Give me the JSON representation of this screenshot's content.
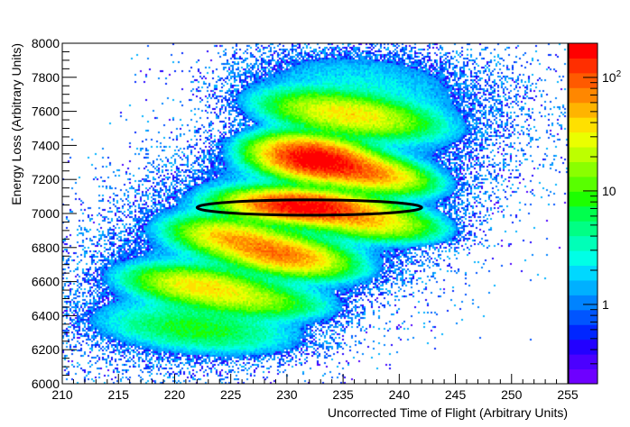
{
  "chart_data": {
    "type": "heatmap",
    "title": "",
    "xlabel": "Uncorrected Time of Flight (Arbitrary Units)",
    "ylabel": "Energy Loss (Arbitrary Units)",
    "xlim": [
      210,
      255
    ],
    "ylim": [
      6000,
      8000
    ],
    "x_ticks": [
      "210",
      "215",
      "220",
      "225",
      "230",
      "235",
      "240",
      "245",
      "250",
      "255"
    ],
    "y_ticks": [
      "6000",
      "6200",
      "6400",
      "6600",
      "6800",
      "7000",
      "7200",
      "7400",
      "7600",
      "7800",
      "8000"
    ],
    "colorbar": {
      "scale": "log",
      "range": [
        0.2,
        200
      ],
      "tick_labels": [
        {
          "value": 1,
          "text": "1"
        },
        {
          "value": 10,
          "text": "10"
        },
        {
          "value": 100,
          "text": "10",
          "sup": "2"
        }
      ],
      "palette": [
        "#6e00ff",
        "#4b00ff",
        "#2300ff",
        "#0026ff",
        "#0055ff",
        "#0083ff",
        "#00b0ff",
        "#00d8ff",
        "#00ffe6",
        "#00ffb8",
        "#00ff84",
        "#00ff4d",
        "#1dff00",
        "#58ff00",
        "#8aff00",
        "#bdff00",
        "#eaff00",
        "#ffe000",
        "#ffb400",
        "#ff8700",
        "#ff5a00",
        "#ff2e00",
        "#ff0000"
      ]
    },
    "clusters": [
      {
        "x": 235.5,
        "y": 7580,
        "sx": 3.6,
        "sy": 65,
        "rho": -0.45,
        "peak": 35
      },
      {
        "x": 232.5,
        "y": 7320,
        "sx": 2.4,
        "sy": 60,
        "rho": -0.3,
        "peak": 200
      },
      {
        "x": 237.0,
        "y": 7240,
        "sx": 2.6,
        "sy": 55,
        "rho": -0.45,
        "peak": 70
      },
      {
        "x": 231.5,
        "y": 7040,
        "sx": 3.0,
        "sy": 45,
        "rho": -0.25,
        "peak": 190
      },
      {
        "x": 237.0,
        "y": 6960,
        "sx": 3.0,
        "sy": 55,
        "rho": -0.4,
        "peak": 40
      },
      {
        "x": 225.0,
        "y": 6860,
        "sx": 2.5,
        "sy": 55,
        "rho": -0.35,
        "peak": 40
      },
      {
        "x": 229.5,
        "y": 6760,
        "sx": 2.8,
        "sy": 60,
        "rho": -0.45,
        "peak": 75
      },
      {
        "x": 222.0,
        "y": 6580,
        "sx": 3.0,
        "sy": 55,
        "rho": -0.35,
        "peak": 30
      },
      {
        "x": 226.0,
        "y": 6500,
        "sx": 3.5,
        "sy": 55,
        "rho": -0.4,
        "peak": 18
      },
      {
        "x": 222.0,
        "y": 6320,
        "sx": 4.5,
        "sy": 75,
        "rho": -0.35,
        "peak": 7
      },
      {
        "x": 230.0,
        "y": 6950,
        "sx": 9.0,
        "sy": 420,
        "rho": 0.55,
        "peak": 3
      },
      {
        "x": 236.0,
        "y": 7750,
        "sx": 6.0,
        "sy": 140,
        "rho": -0.2,
        "peak": 2
      }
    ],
    "annotations": [
      {
        "type": "ellipse",
        "cx": 232.0,
        "cy": 7035,
        "rx": 10.0,
        "ry": 45
      }
    ]
  }
}
